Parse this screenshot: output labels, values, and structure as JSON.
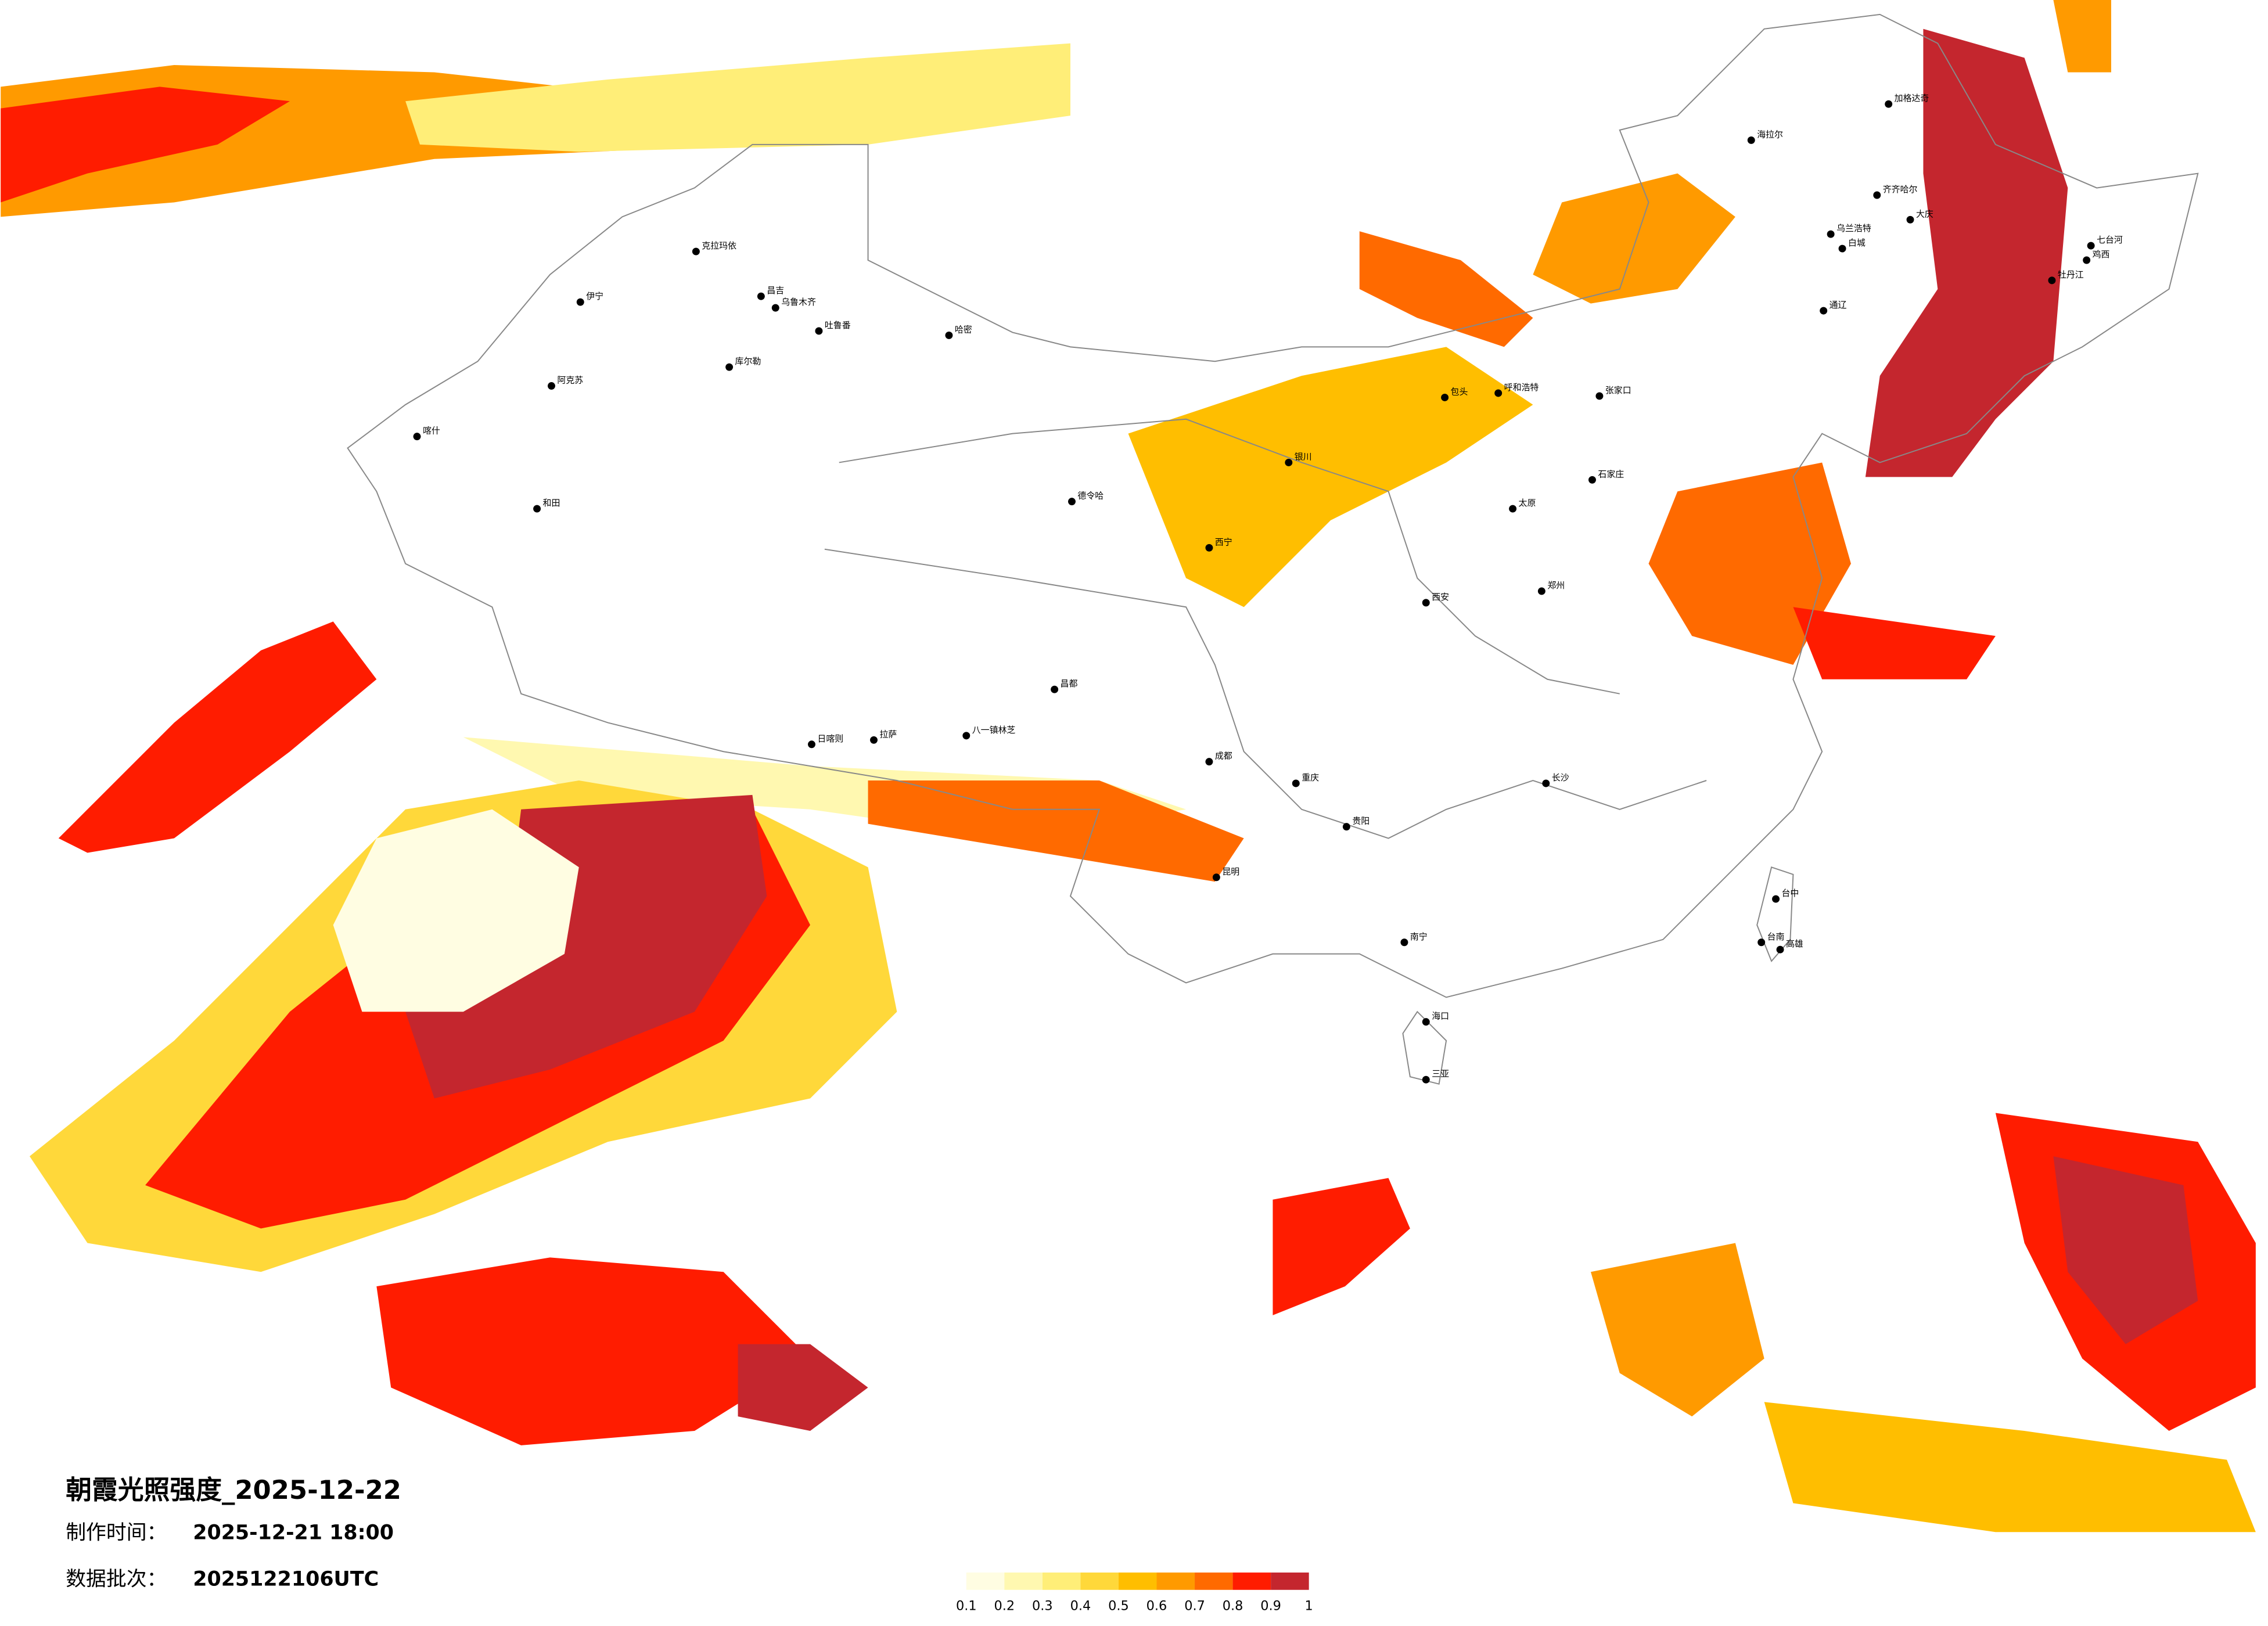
{
  "header": {
    "title": "朝霞光照强度_2025-12-22",
    "made_label": "制作时间：",
    "made_value": "2025-12-21 18:00",
    "batch_label": "数据批次：",
    "batch_value": "2025122106UTC"
  },
  "legend": {
    "ticks": [
      0.1,
      0.2,
      0.3,
      0.4,
      0.5,
      0.6,
      0.7,
      0.8,
      0.9,
      1
    ],
    "colors": [
      "#fffde2",
      "#fff8b0",
      "#ffee78",
      "#ffd83a",
      "#ffbe00",
      "#ff9a00",
      "#ff6a00",
      "#ff1c00",
      "#c4262e"
    ]
  },
  "cities": [
    "加格达奇",
    "海拉尔",
    "齐齐哈尔",
    "大庆",
    "牡丹江",
    "七台河",
    "鸡西",
    "乌兰浩特",
    "白城",
    "通辽",
    "呼和浩特",
    "张家口",
    "包头",
    "阿克苏",
    "伊宁",
    "克拉玛依",
    "昌吉",
    "乌鲁木齐",
    "吐鲁番",
    "哈密",
    "库尔勒",
    "喀什",
    "和田",
    "德令哈",
    "日喀则",
    "拉萨",
    "八一镇林芝",
    "昌都",
    "西宁",
    "银川",
    "成都",
    "重庆",
    "贵阳",
    "昆明",
    "南宁",
    "海口",
    "三亚",
    "台中",
    "台南",
    "高雄",
    "石家庄",
    "郑州",
    "西安",
    "长沙",
    "太原"
  ]
}
